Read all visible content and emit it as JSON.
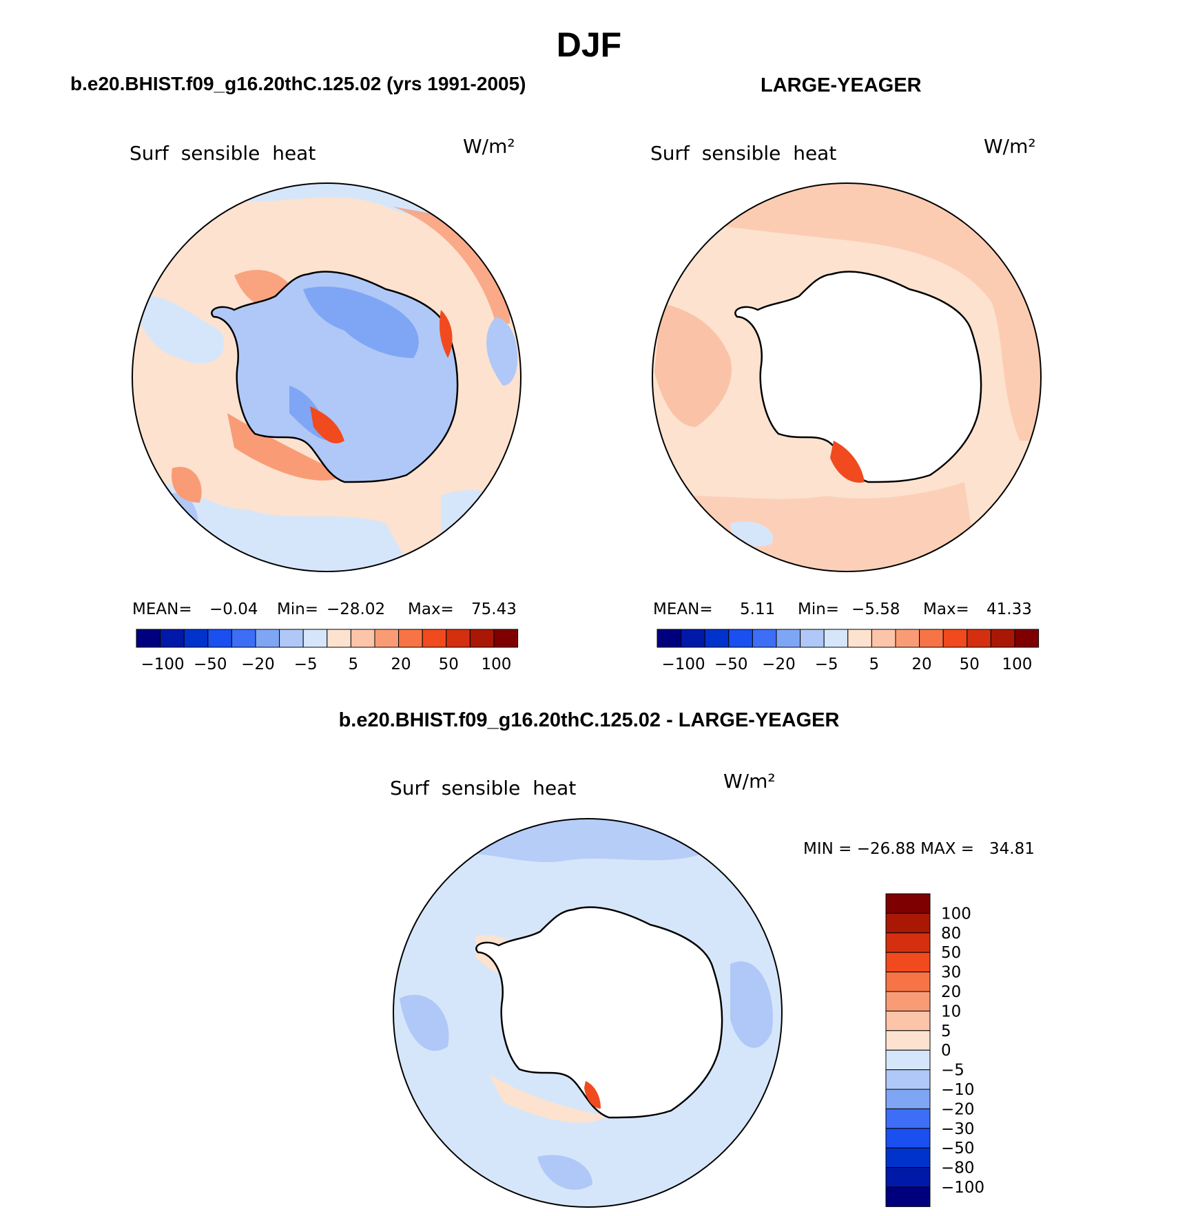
{
  "season": "DJF",
  "panels": {
    "top_left": {
      "header": "b.e20.BHIST.f09_g16.20thC.125.02 (yrs 1991-2005)",
      "variable": "Surf  sensible  heat",
      "units": "W/m²",
      "stats": {
        "mean_label": "MEAN=",
        "mean": "−0.04",
        "min_label": "Min=",
        "min": "−28.02",
        "max_label": "Max=",
        "max": "75.43"
      }
    },
    "top_right": {
      "header": "LARGE-YEAGER",
      "variable": "Surf  sensible  heat",
      "units": "W/m²",
      "stats": {
        "mean_label": "MEAN=",
        "mean": "5.11",
        "min_label": "Min=",
        "min": "−5.58",
        "max_label": "Max=",
        "max": "41.33"
      }
    },
    "bottom": {
      "header": "b.e20.BHIST.f09_g16.20thC.125.02 - LARGE-YEAGER",
      "variable": "Surf  sensible  heat",
      "units": "W/m²",
      "minmax": "MIN = −26.88 MAX =   34.81"
    }
  },
  "colorbar": {
    "colors": [
      "#00007f",
      "#0019a8",
      "#0033cc",
      "#1a4ff0",
      "#3d6ef5",
      "#7fa6f5",
      "#b0c8f7",
      "#d6e6fa",
      "#fce2cf",
      "#fcc4a8",
      "#f99c76",
      "#f67446",
      "#f04a1e",
      "#d4300f",
      "#a81805",
      "#7f0000"
    ],
    "horizontal_labels": [
      "−100",
      "−50",
      "−20",
      "−5",
      "5",
      "20",
      "50",
      "100"
    ],
    "vertical_labels": [
      "100",
      "80",
      "50",
      "30",
      "20",
      "10",
      "5",
      "0",
      "−5",
      "−10",
      "−20",
      "−30",
      "−50",
      "−80",
      "−100"
    ]
  }
}
